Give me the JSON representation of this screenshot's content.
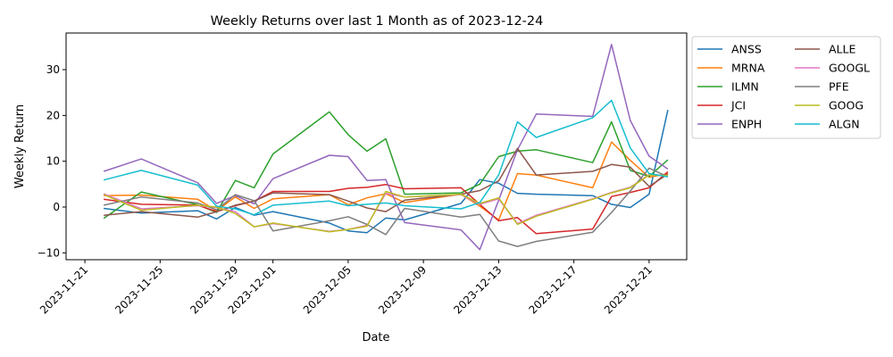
{
  "chart_data": {
    "type": "line",
    "title": "Weekly Returns over last 1 Month as of 2023-12-24",
    "xlabel": "Date",
    "ylabel": "Weekly Return",
    "xlim": [
      "2023-11-20",
      "2023-12-23"
    ],
    "ylim": [
      -11.5,
      38
    ],
    "x_ticks": [
      "2023-11-21",
      "2023-11-25",
      "2023-11-29",
      "2023-12-01",
      "2023-12-05",
      "2023-12-09",
      "2023-12-13",
      "2023-12-17",
      "2023-12-21"
    ],
    "y_ticks": [
      -10,
      0,
      10,
      20,
      30
    ],
    "grid": false,
    "legend": "outside-right",
    "dates": [
      "2023-11-22",
      "2023-11-24",
      "2023-11-27",
      "2023-11-28",
      "2023-11-29",
      "2023-11-30",
      "2023-12-01",
      "2023-12-04",
      "2023-12-05",
      "2023-12-06",
      "2023-12-07",
      "2023-12-08",
      "2023-12-11",
      "2023-12-12",
      "2023-12-13",
      "2023-12-14",
      "2023-12-15",
      "2023-12-18",
      "2023-12-19",
      "2023-12-20",
      "2023-12-21",
      "2023-12-22"
    ],
    "series": [
      {
        "name": "ANSS",
        "color": "#1f77b4",
        "values": [
          -0.3,
          -1.3,
          -0.8,
          -2.6,
          -0.1,
          -1.8,
          -1.0,
          -3.5,
          -5.2,
          -5.6,
          -2.4,
          -2.8,
          0.8,
          6.0,
          5.2,
          3.0,
          2.8,
          2.5,
          0.6,
          -0.1,
          2.8,
          21.2
        ]
      },
      {
        "name": "MRNA",
        "color": "#ff7f0e",
        "values": [
          2.5,
          2.6,
          1.7,
          -0.8,
          2.2,
          -0.3,
          1.8,
          2.7,
          0.5,
          2.0,
          2.9,
          1.0,
          2.8,
          0.2,
          -2.8,
          7.3,
          7.0,
          4.2,
          14.2,
          10.2,
          6.5,
          7.3
        ]
      },
      {
        "name": "ILMN",
        "color": "#2ca02c",
        "values": [
          -2.5,
          3.3,
          0.5,
          -1.2,
          5.8,
          4.2,
          11.6,
          20.8,
          15.8,
          12.2,
          14.9,
          2.8,
          3.1,
          5.0,
          11.0,
          12.2,
          12.5,
          9.7,
          18.6,
          8.0,
          6.7,
          10.3
        ]
      },
      {
        "name": "JCI",
        "color": "#d62728",
        "values": [
          1.7,
          0.6,
          0.4,
          -1.0,
          0.3,
          1.3,
          3.4,
          3.4,
          4.1,
          4.3,
          4.9,
          4.0,
          4.2,
          0.6,
          -3.0,
          -2.3,
          -5.8,
          -4.8,
          2.3,
          3.2,
          4.2,
          7.7
        ]
      },
      {
        "name": "ENPH",
        "color": "#9467bd",
        "values": [
          7.8,
          10.5,
          5.3,
          0.8,
          2.5,
          0.7,
          6.2,
          11.3,
          11.0,
          5.8,
          6.0,
          -3.4,
          -5.0,
          -9.3,
          1.5,
          12.5,
          20.3,
          19.8,
          35.5,
          18.9,
          11.1,
          8.3
        ]
      },
      {
        "name": "ALLE",
        "color": "#8c564b",
        "values": [
          -1.8,
          -1.0,
          -2.2,
          -1.0,
          0.4,
          1.3,
          3.1,
          2.7,
          1.3,
          -0.2,
          -1.0,
          1.5,
          2.8,
          3.6,
          5.7,
          12.8,
          7.0,
          7.8,
          9.3,
          8.7,
          4.5,
          7.2
        ]
      },
      {
        "name": "GOOGL",
        "color": "#e377c2",
        "values": [
          2.9,
          -0.4,
          0.3,
          -0.1,
          -1.0,
          -4.3,
          -3.6,
          -5.3,
          -4.9,
          -4.0,
          3.0,
          2.2,
          2.7,
          0.6,
          1.8,
          -3.6,
          -1.8,
          1.8,
          3.2,
          4.3,
          7.1,
          6.9
        ]
      },
      {
        "name": "PFE",
        "color": "#7f7f7f",
        "values": [
          0.4,
          2.2,
          0.9,
          -0.6,
          2.7,
          1.4,
          -5.2,
          -3.0,
          -2.1,
          -3.8,
          -6.0,
          -0.3,
          -2.2,
          -1.6,
          -7.4,
          -8.6,
          -7.5,
          -5.5,
          -1.2,
          3.5,
          8.5,
          6.6
        ]
      },
      {
        "name": "GOOG",
        "color": "#bcbd22",
        "values": [
          2.7,
          -0.7,
          0.4,
          0.0,
          -1.4,
          -4.3,
          -3.5,
          -5.4,
          -4.9,
          -4.2,
          3.4,
          2.2,
          2.8,
          0.8,
          2.0,
          -3.8,
          -2.0,
          1.7,
          3.1,
          4.2,
          7.0,
          6.9
        ]
      },
      {
        "name": "ALGN",
        "color": "#17becf",
        "values": [
          5.9,
          8.0,
          4.8,
          0.2,
          -0.4,
          -1.7,
          0.4,
          1.3,
          0.3,
          0.6,
          0.9,
          0.3,
          -0.4,
          1.0,
          7.0,
          18.6,
          15.2,
          19.5,
          23.3,
          12.9,
          7.3,
          6.6
        ]
      }
    ]
  }
}
